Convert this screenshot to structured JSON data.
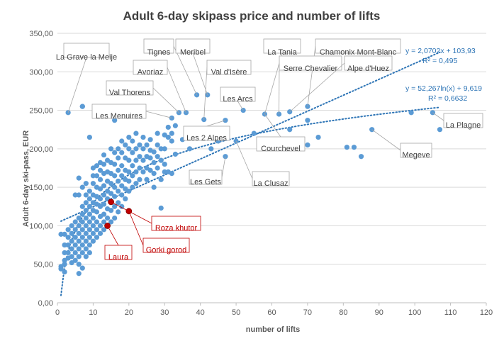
{
  "chart_data": {
    "type": "scatter",
    "title": "Adult 6-day skipass price and number of lifts",
    "xlabel": "number of lifts",
    "ylabel": "Adult 6-day ski-pass,  EUR",
    "xlim": [
      0,
      120
    ],
    "ylim": [
      0,
      350
    ],
    "x_ticks": [
      "0",
      "10",
      "20",
      "30",
      "40",
      "50",
      "60",
      "70",
      "80",
      "90",
      "100",
      "110",
      "120"
    ],
    "y_ticks": [
      "0,00",
      "50,00",
      "100,00",
      "150,00",
      "200,00",
      "250,00",
      "300,00",
      "350,00"
    ],
    "grid": "horizontal",
    "colors": {
      "points": "#5b9bd5",
      "highlight": "#c00000",
      "trendline": "#2e75b6",
      "grid": "#d9d9d9"
    },
    "points": [
      [
        1,
        44
      ],
      [
        1,
        47
      ],
      [
        1,
        89
      ],
      [
        2,
        40
      ],
      [
        2,
        50
      ],
      [
        2,
        55
      ],
      [
        2,
        65
      ],
      [
        2,
        75
      ],
      [
        2,
        89
      ],
      [
        3,
        58
      ],
      [
        3,
        65
      ],
      [
        3,
        75
      ],
      [
        3,
        85
      ],
      [
        3,
        95
      ],
      [
        4,
        52
      ],
      [
        4,
        60
      ],
      [
        4,
        70
      ],
      [
        4,
        80
      ],
      [
        4,
        90
      ],
      [
        4,
        100
      ],
      [
        5,
        55
      ],
      [
        5,
        65
      ],
      [
        5,
        75
      ],
      [
        5,
        85
      ],
      [
        5,
        95
      ],
      [
        5,
        105
      ],
      [
        5,
        140
      ],
      [
        6,
        38
      ],
      [
        6,
        50
      ],
      [
        6,
        60
      ],
      [
        6,
        70
      ],
      [
        6,
        80
      ],
      [
        6,
        90
      ],
      [
        6,
        100
      ],
      [
        6,
        110
      ],
      [
        6,
        140
      ],
      [
        6,
        162
      ],
      [
        7,
        45
      ],
      [
        7,
        65
      ],
      [
        7,
        75
      ],
      [
        7,
        85
      ],
      [
        7,
        95
      ],
      [
        7,
        105
      ],
      [
        7,
        115
      ],
      [
        7,
        125
      ],
      [
        7,
        150
      ],
      [
        7,
        255
      ],
      [
        8,
        60
      ],
      [
        8,
        70
      ],
      [
        8,
        80
      ],
      [
        8,
        90
      ],
      [
        8,
        100
      ],
      [
        8,
        110
      ],
      [
        8,
        120
      ],
      [
        8,
        130
      ],
      [
        8,
        140
      ],
      [
        8,
        155
      ],
      [
        9,
        65
      ],
      [
        9,
        75
      ],
      [
        9,
        85
      ],
      [
        9,
        95
      ],
      [
        9,
        105
      ],
      [
        9,
        115
      ],
      [
        9,
        125
      ],
      [
        9,
        135
      ],
      [
        9,
        145
      ],
      [
        9,
        215
      ],
      [
        10,
        80
      ],
      [
        10,
        90
      ],
      [
        10,
        100
      ],
      [
        10,
        110
      ],
      [
        10,
        120
      ],
      [
        10,
        130
      ],
      [
        10,
        140
      ],
      [
        10,
        155
      ],
      [
        10,
        165
      ],
      [
        10,
        175
      ],
      [
        11,
        85
      ],
      [
        11,
        95
      ],
      [
        11,
        105
      ],
      [
        11,
        118
      ],
      [
        11,
        128
      ],
      [
        11,
        138
      ],
      [
        11,
        150
      ],
      [
        11,
        165
      ],
      [
        11,
        178
      ],
      [
        12,
        90
      ],
      [
        12,
        100
      ],
      [
        12,
        112
      ],
      [
        12,
        125
      ],
      [
        12,
        135
      ],
      [
        12,
        148
      ],
      [
        12,
        160
      ],
      [
        12,
        172
      ],
      [
        12,
        182
      ],
      [
        13,
        95
      ],
      [
        13,
        105
      ],
      [
        13,
        115
      ],
      [
        13,
        128
      ],
      [
        13,
        140
      ],
      [
        13,
        152
      ],
      [
        13,
        168
      ],
      [
        13,
        180
      ],
      [
        13,
        192
      ],
      [
        14,
        100
      ],
      [
        14,
        110
      ],
      [
        14,
        122
      ],
      [
        14,
        135
      ],
      [
        14,
        145
      ],
      [
        14,
        158
      ],
      [
        14,
        170
      ],
      [
        14,
        185
      ],
      [
        15,
        105
      ],
      [
        15,
        120
      ],
      [
        15,
        130
      ],
      [
        15,
        142
      ],
      [
        15,
        155
      ],
      [
        15,
        168
      ],
      [
        15,
        182
      ],
      [
        15,
        200
      ],
      [
        16,
        110
      ],
      [
        16,
        125
      ],
      [
        16,
        138
      ],
      [
        16,
        150
      ],
      [
        16,
        165
      ],
      [
        16,
        180
      ],
      [
        16,
        195
      ],
      [
        16,
        237
      ],
      [
        17,
        118
      ],
      [
        17,
        130
      ],
      [
        17,
        145
      ],
      [
        17,
        158
      ],
      [
        17,
        172
      ],
      [
        17,
        188
      ],
      [
        17,
        200
      ],
      [
        18,
        125
      ],
      [
        18,
        140
      ],
      [
        18,
        152
      ],
      [
        18,
        165
      ],
      [
        18,
        178
      ],
      [
        18,
        195
      ],
      [
        18,
        210
      ],
      [
        19,
        135
      ],
      [
        19,
        148
      ],
      [
        19,
        160
      ],
      [
        19,
        172
      ],
      [
        19,
        188
      ],
      [
        19,
        205
      ],
      [
        20,
        145
      ],
      [
        20,
        158
      ],
      [
        20,
        170
      ],
      [
        20,
        185
      ],
      [
        20,
        200
      ],
      [
        20,
        215
      ],
      [
        21,
        150
      ],
      [
        21,
        165
      ],
      [
        21,
        178
      ],
      [
        21,
        195
      ],
      [
        21,
        210
      ],
      [
        22,
        155
      ],
      [
        22,
        170
      ],
      [
        22,
        185
      ],
      [
        22,
        200
      ],
      [
        22,
        220
      ],
      [
        23,
        160
      ],
      [
        23,
        175
      ],
      [
        23,
        190
      ],
      [
        23,
        205
      ],
      [
        24,
        170
      ],
      [
        24,
        185
      ],
      [
        24,
        200
      ],
      [
        24,
        215
      ],
      [
        25,
        160
      ],
      [
        25,
        175
      ],
      [
        25,
        190
      ],
      [
        25,
        205
      ],
      [
        26,
        172
      ],
      [
        26,
        188
      ],
      [
        26,
        198
      ],
      [
        26,
        212
      ],
      [
        27,
        150
      ],
      [
        27,
        168
      ],
      [
        27,
        182
      ],
      [
        27,
        196
      ],
      [
        28,
        175
      ],
      [
        28,
        190
      ],
      [
        28,
        205
      ],
      [
        28,
        220
      ],
      [
        29,
        160
      ],
      [
        29,
        185
      ],
      [
        29,
        200
      ],
      [
        29,
        123
      ],
      [
        30,
        170
      ],
      [
        30,
        180
      ],
      [
        30,
        200
      ],
      [
        30,
        218
      ],
      [
        31,
        215
      ],
      [
        31,
        228
      ],
      [
        31,
        170
      ],
      [
        32,
        210
      ],
      [
        32,
        220
      ],
      [
        32,
        240
      ],
      [
        32,
        168
      ],
      [
        33,
        193
      ],
      [
        33,
        230
      ],
      [
        34,
        247
      ],
      [
        35,
        212
      ],
      [
        36,
        247
      ],
      [
        37,
        200
      ],
      [
        39,
        270
      ],
      [
        41,
        238
      ],
      [
        42,
        270
      ],
      [
        43,
        200
      ],
      [
        45,
        210
      ],
      [
        47,
        190
      ],
      [
        47,
        237
      ],
      [
        50,
        210
      ],
      [
        52,
        250
      ],
      [
        55,
        220
      ],
      [
        58,
        245
      ],
      [
        60,
        210
      ],
      [
        62,
        245
      ],
      [
        65,
        225
      ],
      [
        65,
        248
      ],
      [
        70,
        205
      ],
      [
        70,
        237
      ],
      [
        70,
        255
      ],
      [
        73,
        215
      ],
      [
        81,
        202
      ],
      [
        83,
        202
      ],
      [
        85,
        190
      ],
      [
        88,
        225
      ],
      [
        99,
        247
      ],
      [
        105,
        247
      ],
      [
        107,
        225
      ],
      [
        3,
        247
      ],
      [
        7,
        255
      ]
    ],
    "highlighted_points": [
      {
        "label": "Roza khutor",
        "x": 15,
        "y": 131
      },
      {
        "label": "Gorki gorod",
        "x": 20,
        "y": 119
      },
      {
        "label": "Laura",
        "x": 14,
        "y": 100
      }
    ],
    "annotations": [
      {
        "label": "La Grave la Meije",
        "x": 3,
        "y": 247,
        "color": "gray"
      },
      {
        "label": "Tignes",
        "x": 39,
        "y": 270,
        "color": "gray"
      },
      {
        "label": "Meribel",
        "x": 42,
        "y": 270,
        "color": "gray"
      },
      {
        "label": "La Tania",
        "x": 58,
        "y": 245,
        "color": "gray"
      },
      {
        "label": "Chamonix Mont-Blanc",
        "x": 70,
        "y": 255,
        "color": "gray"
      },
      {
        "label": "Avoriaz",
        "x": 36,
        "y": 247,
        "color": "gray"
      },
      {
        "label": "Val d'Isère",
        "x": 41,
        "y": 238,
        "color": "gray"
      },
      {
        "label": "Serre Chevalier",
        "x": 62,
        "y": 245,
        "color": "gray"
      },
      {
        "label": "Alpe d'Huez",
        "x": 65,
        "y": 248,
        "color": "gray"
      },
      {
        "label": "Val Thorens",
        "x": 34,
        "y": 247,
        "color": "gray"
      },
      {
        "label": "Les Arcs",
        "x": 52,
        "y": 250,
        "color": "gray"
      },
      {
        "label": "Les Menuires",
        "x": 32,
        "y": 240,
        "color": "gray"
      },
      {
        "label": "Les 2 Alpes",
        "x": 47,
        "y": 237,
        "color": "gray"
      },
      {
        "label": "La Plagne",
        "x": 105,
        "y": 247,
        "color": "gray"
      },
      {
        "label": "Courchevel",
        "x": 58,
        "y": 245,
        "color": "gray"
      },
      {
        "label": "Megeve",
        "x": 88,
        "y": 225,
        "color": "gray"
      },
      {
        "label": "Les Gets",
        "x": 47,
        "y": 190,
        "color": "gray"
      },
      {
        "label": "La Clusaz",
        "x": 50,
        "y": 210,
        "color": "gray"
      },
      {
        "label": "Roza khutor",
        "x": 15,
        "y": 131,
        "color": "red"
      },
      {
        "label": "Gorki gorod",
        "x": 20,
        "y": 119,
        "color": "red"
      },
      {
        "label": "Laura",
        "x": 14,
        "y": 100,
        "color": "red"
      }
    ],
    "trendlines": [
      {
        "kind": "linear",
        "equation": "y = 2,0702x + 103,93",
        "r2": "R² = 0,495",
        "slope": 2.0702,
        "intercept": 103.93,
        "x_range": [
          1,
          107
        ]
      },
      {
        "kind": "log",
        "equation": "y = 52,267ln(x) + 9,619",
        "r2": "R² = 0,6632",
        "a": 52.267,
        "b": 9.619,
        "x_range": [
          1,
          107
        ]
      }
    ]
  }
}
